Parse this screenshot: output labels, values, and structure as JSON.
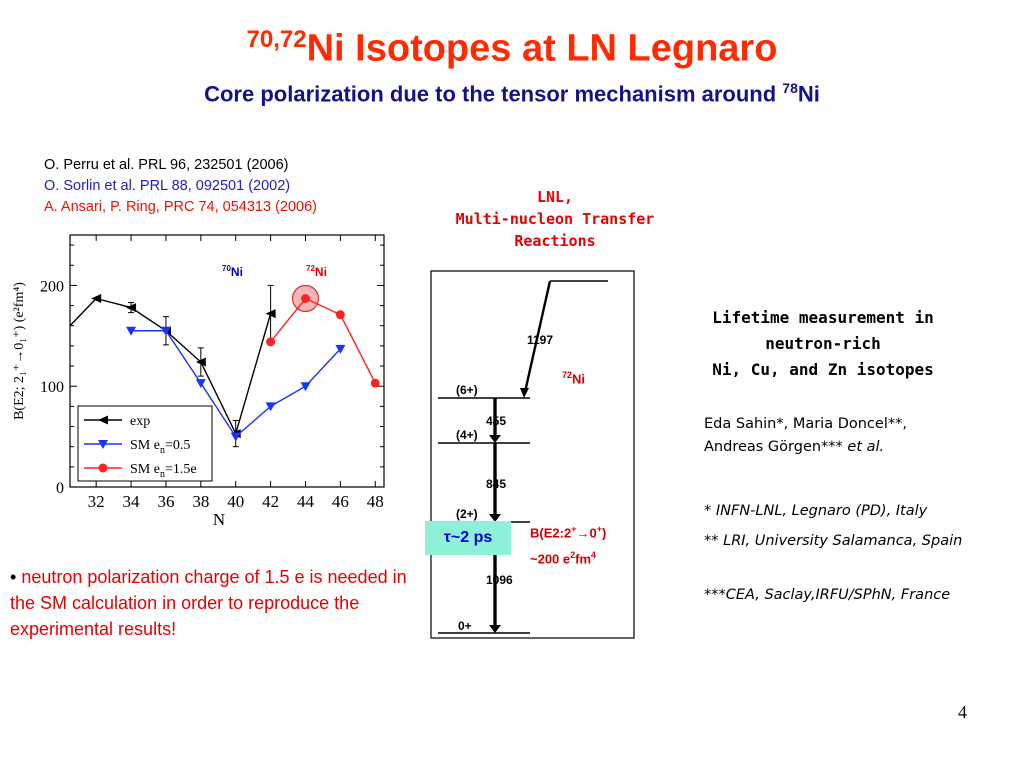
{
  "title": {
    "mass": "70,72",
    "text": "Ni Isotopes at LN Legnaro"
  },
  "subtitle": {
    "text": "Core polarization due to the tensor mechanism around ",
    "mass": "78",
    "element": "Ni"
  },
  "references": [
    "O. Perru et al. PRL 96, 232501 (2006)",
    "O. Sorlin et al. PRL 88, 092501 (2002)",
    "A. Ansari, P. Ring, PRC 74, 054313 (2006)"
  ],
  "lnl": {
    "line1": "LNL,",
    "line2": "Multi-nucleon Transfer",
    "line3": "Reactions"
  },
  "lifetime": {
    "line1": "Lifetime measurement in",
    "line2": "neutron-rich",
    "line3": "Ni, Cu, and Zn isotopes"
  },
  "authors": {
    "line1": "Eda Sahin*, Maria Doncel**,",
    "line2": "Andreas Görgen***",
    "etal": "et al."
  },
  "affiliations": [
    "* INFN-LNL, Legnaro (PD), Italy",
    "** LRI, University Salamanca, Spain",
    "***CEA, Saclay,IRFU/SPhN, France"
  ],
  "bullet": {
    "mark": "•",
    "red": "neutron polarization charge of 1.5 e is needed in the SM calculation in order to reproduce the experimental results!"
  },
  "page_number": "4",
  "level_scheme": {
    "nucleus_mass": "72",
    "nucleus": "Ni",
    "levels": [
      "(6+)",
      "(4+)",
      "(2+)",
      "0+"
    ],
    "transitions": [
      "1197",
      "455",
      "845",
      "1096"
    ],
    "tau": "τ~2 ps",
    "be2_line1": "B(E2:2",
    "be2_arrow": "0",
    "be2_line2": "~200 e",
    "be2_unit": "fm",
    "be2_plus": "+",
    "be2_close": ")",
    "be2_sq": "2",
    "be2_four": "4"
  },
  "chart_data": {
    "type": "line",
    "xlabel": "N",
    "ylabel": "B(E2; 2₁⁺→0₁⁺)   (e²fm⁴)",
    "xlim": [
      30.5,
      48.5
    ],
    "ylim": [
      0,
      250
    ],
    "xticks": [
      32,
      34,
      36,
      38,
      40,
      42,
      44,
      46,
      48
    ],
    "yticks": [
      0,
      100,
      200
    ],
    "markers": {
      "ni70": {
        "mass": "70",
        "element": "Ni"
      },
      "ni72": {
        "mass": "72",
        "element": "Ni"
      }
    },
    "legend_placement": "bottom-left",
    "series": [
      {
        "name": "exp",
        "color": "#000000",
        "x": [
          30.5,
          32,
          34,
          36,
          38,
          40,
          42
        ],
        "y": [
          160,
          187,
          178,
          155,
          124,
          53,
          172
        ],
        "err": [
          0,
          0,
          5,
          14,
          14,
          13,
          28
        ]
      },
      {
        "name": "SM en=0.5",
        "legend_main": "SM e",
        "legend_sub": "n",
        "legend_tail": "=0.5",
        "color": "#1a33ff",
        "x": [
          34,
          36,
          38,
          40,
          42,
          44,
          46
        ],
        "y": [
          155,
          155,
          103,
          50,
          80,
          100,
          137
        ]
      },
      {
        "name": "SM en=1.5e",
        "legend_main": "SM e",
        "legend_sub": "n",
        "legend_tail": "=1.5e",
        "color": "#ff2222",
        "x": [
          42,
          44,
          46,
          48
        ],
        "y": [
          144,
          187,
          171,
          103
        ]
      }
    ],
    "highlight": {
      "x": 44,
      "y": 187
    }
  }
}
